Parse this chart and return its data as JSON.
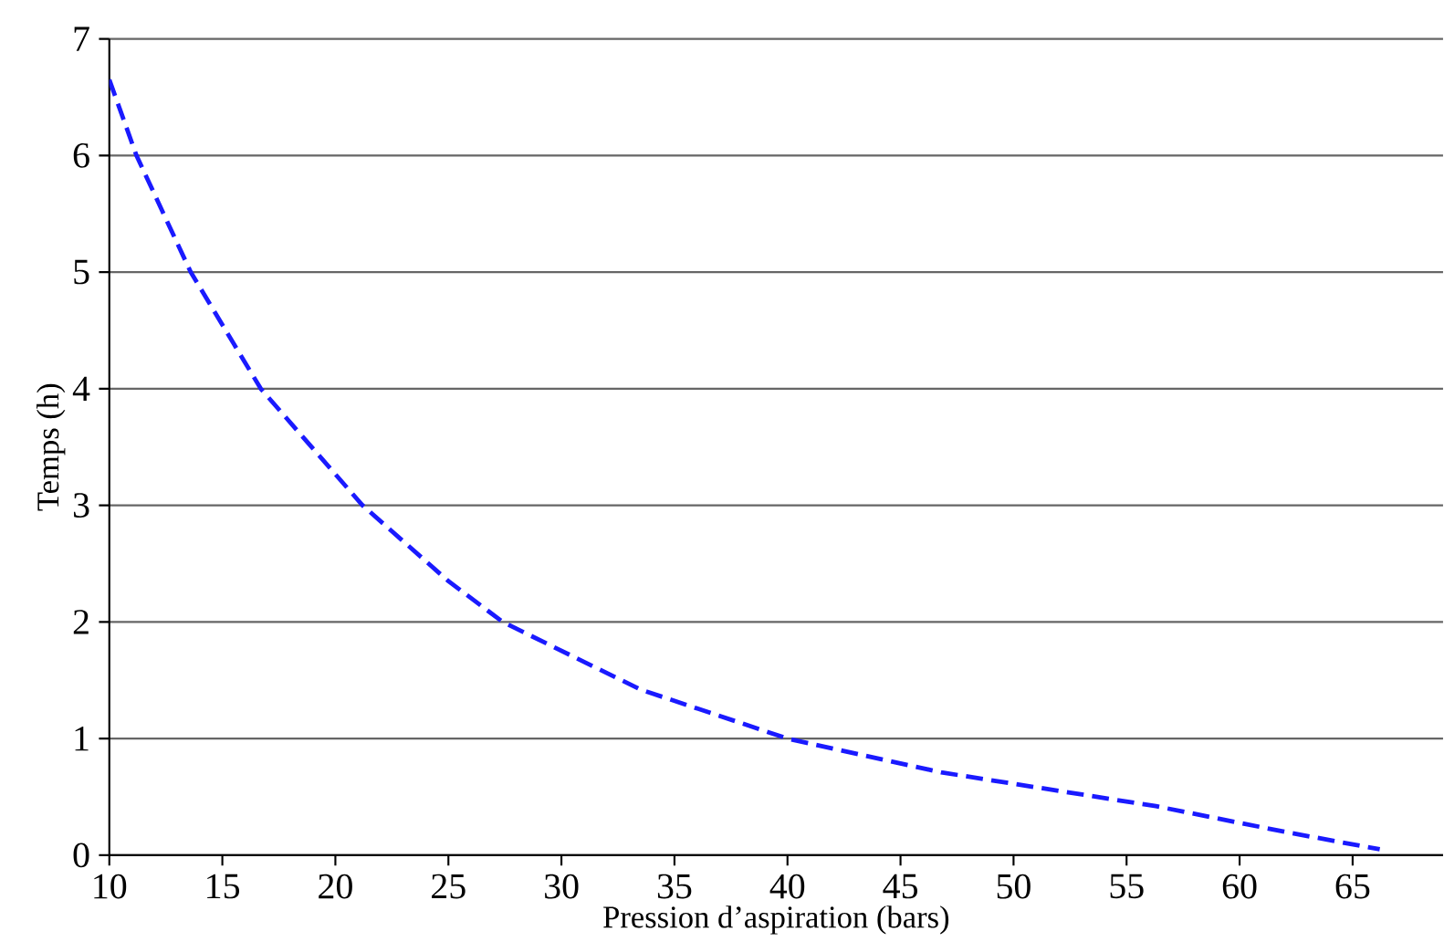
{
  "chart_data": {
    "type": "line",
    "xlabel": "Pression d’aspiration (bars)",
    "ylabel": "Temps (h)",
    "x": [
      10,
      11.2,
      13.6,
      16.7,
      21.2,
      25,
      27.4,
      33.5,
      40,
      46.8,
      56.3,
      62,
      66.2
    ],
    "values": [
      6.65,
      6,
      5,
      4,
      3,
      2.35,
      2,
      1.42,
      1,
      0.71,
      0.42,
      0.2,
      0.05
    ],
    "color": "#1a1aff",
    "line_style": "dashed",
    "marker": "none",
    "grid": "y",
    "xlim": [
      10,
      69
    ],
    "xticks": [
      10,
      15,
      20,
      25,
      30,
      35,
      40,
      45,
      50,
      55,
      60,
      65
    ],
    "ylim": [
      0,
      7
    ],
    "yticks": [
      0,
      1,
      2,
      3,
      4,
      5,
      6,
      7
    ]
  }
}
